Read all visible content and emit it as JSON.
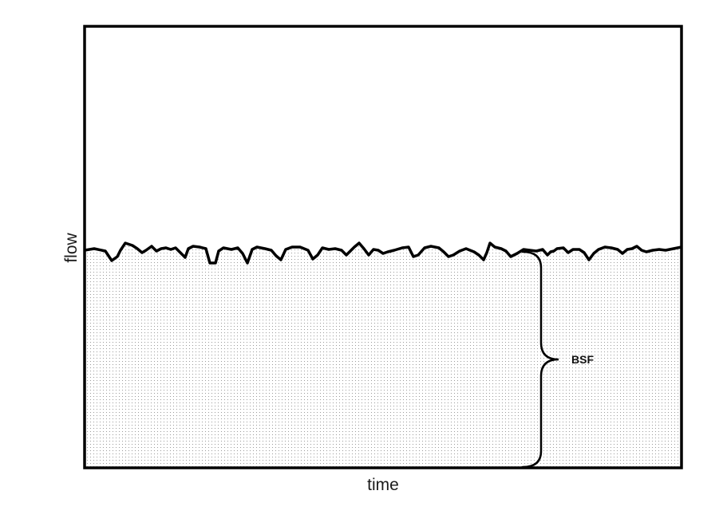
{
  "diagram": {
    "x_axis_label": "time",
    "y_axis_label": "flow",
    "brace_label": "BSF",
    "line_color": "#000000",
    "fill_dot_color": "#9a9a9a",
    "background_color": "#ffffff"
  }
}
